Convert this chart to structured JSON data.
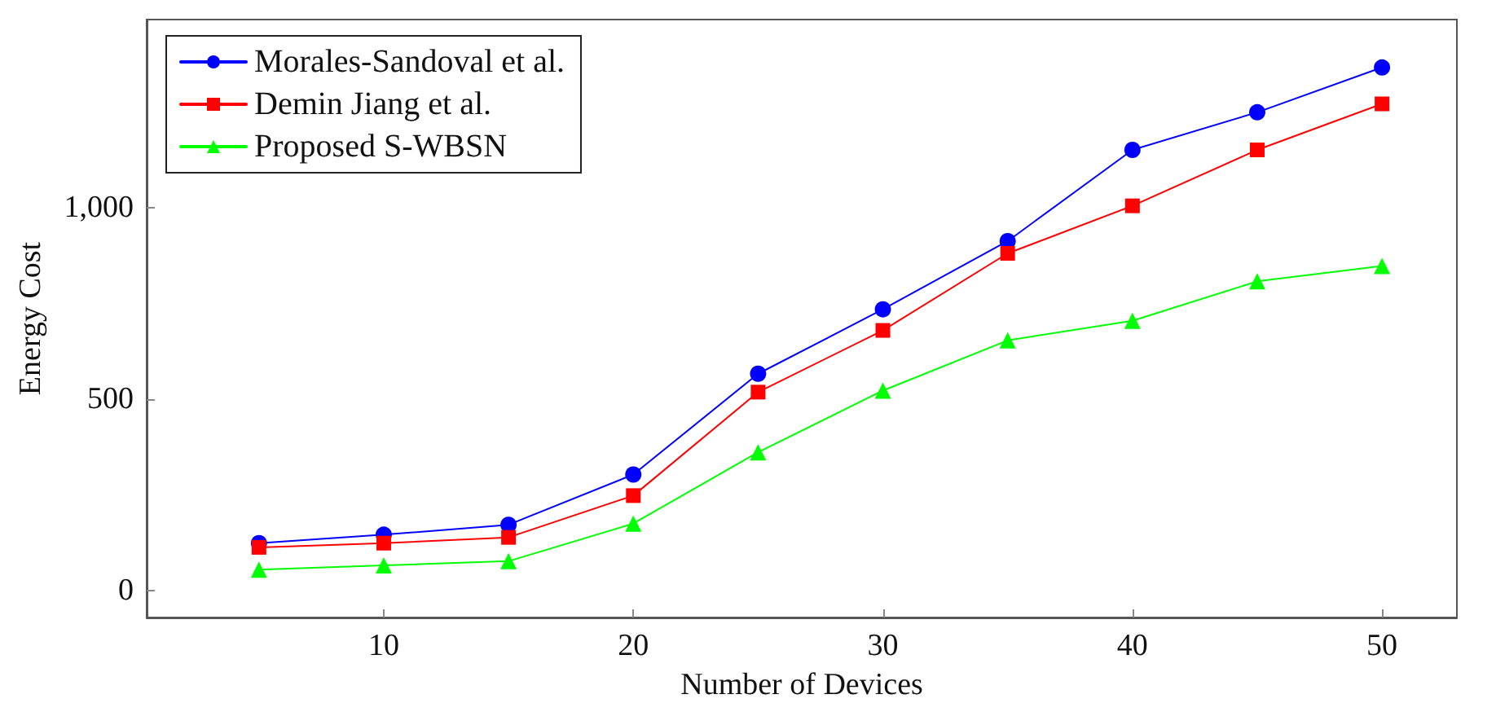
{
  "chart_data": {
    "type": "line",
    "xlabel": "Number of Devices",
    "ylabel": "Energy Cost",
    "x": [
      5,
      10,
      15,
      20,
      25,
      30,
      35,
      40,
      45,
      50
    ],
    "series": [
      {
        "name": "Morales-Sandoval et al.",
        "color": "#0000ff",
        "marker": "circle",
        "values": [
          124,
          146,
          172,
          303,
          566,
          734,
          912,
          1150,
          1248,
          1365
        ]
      },
      {
        "name": "Demin Jiang et al.",
        "color": "#ff0000",
        "marker": "square",
        "values": [
          113,
          124,
          139,
          248,
          518,
          679,
          880,
          1004,
          1150,
          1270
        ]
      },
      {
        "name": "Proposed S-WBSN",
        "color": "#00ff00",
        "marker": "triangle",
        "values": [
          55,
          66,
          77,
          175,
          361,
          522,
          653,
          704,
          807,
          847
        ]
      }
    ],
    "xlim": [
      0.5,
      53
    ],
    "xticks": [
      10,
      20,
      30,
      40,
      50
    ],
    "ylim": [
      -70,
      1490
    ],
    "yticks": [
      0,
      500,
      {
        "value": 1000,
        "label": "1,000"
      }
    ],
    "legend": "top left",
    "grid": false
  }
}
